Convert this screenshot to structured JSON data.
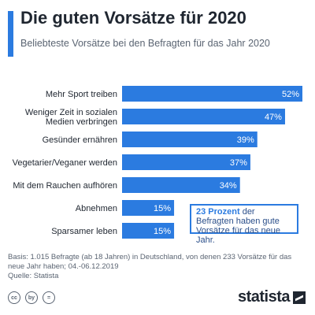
{
  "chart_data": {
    "type": "bar",
    "orientation": "horizontal",
    "title": "Die guten Vorsätze für 2020",
    "subtitle": "Beliebteste Vorsätze bei den Befragten für das Jahr 2020",
    "categories": [
      [
        "Mehr Sport treiben"
      ],
      [
        "Weniger Zeit in sozialen",
        "Medien verbringen"
      ],
      [
        "Gesünder ernähren"
      ],
      [
        "Vegetarier/Veganer werden"
      ],
      [
        "Mit dem Rauchen aufhören"
      ],
      [
        "Abnehmen"
      ],
      [
        "Sparsamer leben"
      ]
    ],
    "values": [
      52,
      47,
      39,
      37,
      34,
      15,
      15
    ],
    "value_labels": [
      "52%",
      "47%",
      "39%",
      "37%",
      "34%",
      "15%",
      "15%"
    ],
    "unit": "%",
    "xlim": [
      0,
      52
    ],
    "bar_color": "#2b7be0",
    "grid": false,
    "annotation": {
      "highlight": "23 Prozent",
      "text": " der Befragten haben gute Vorsätze für das neue Jahr."
    }
  },
  "footer": {
    "basis": "Basis: 1.015 Befragte (ab 18 Jahren) in Deutschland, von denen 233 Vorsätze für das neue Jahr haben; 04.-06.12.2019",
    "source": "Quelle: Statista"
  },
  "license_icons": [
    "cc",
    "by",
    "="
  ],
  "brand": "statista"
}
